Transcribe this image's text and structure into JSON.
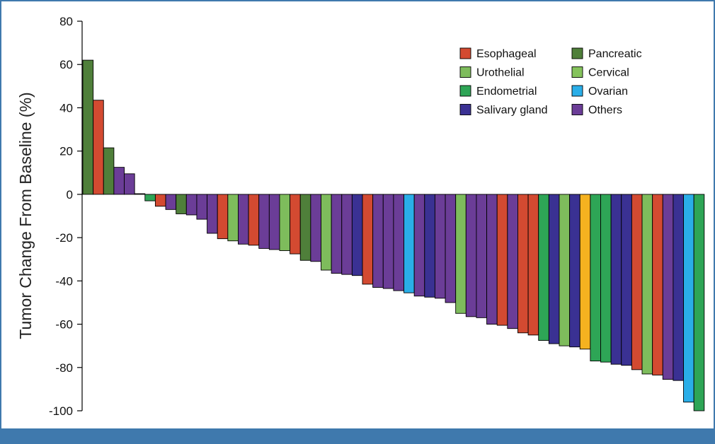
{
  "chart_data": {
    "type": "bar",
    "ylabel": "Tumor Change From Baseline (%)",
    "ylim": [
      -100,
      80
    ],
    "yticks": [
      80,
      60,
      40,
      20,
      0,
      -20,
      -40,
      -60,
      -80,
      -100
    ],
    "legend": {
      "placement": "top-right",
      "entries": [
        {
          "name": "Esophageal",
          "color": "#d34a31"
        },
        {
          "name": "Pancreatic",
          "color": "#4f7f3a"
        },
        {
          "name": "Urothelial",
          "color": "#7ebc5c"
        },
        {
          "name": "Cervical",
          "color": "#85c35c"
        },
        {
          "name": "Endometrial",
          "color": "#2ea556"
        },
        {
          "name": "Ovarian",
          "color": "#2aaee8"
        },
        {
          "name": "Salivary gland",
          "color": "#3a3193"
        },
        {
          "name": "Others",
          "color": "#6b3d97"
        }
      ]
    },
    "colors": {
      "Pancreatic": "#4f7f3a",
      "Esophageal": "#d34a31",
      "Others": "#6b3d97",
      "Endometrial": "#2ea556",
      "Urothelial": "#7ebc5c",
      "Cervical": "#85c35c",
      "Salivary gland": "#3a3193",
      "Ovarian": "#2aaee8",
      "Unlabeled": "#f5b220"
    },
    "bars": [
      {
        "cat": "Pancreatic",
        "value": 62
      },
      {
        "cat": "Esophageal",
        "value": 43.5
      },
      {
        "cat": "Pancreatic",
        "value": 21.5
      },
      {
        "cat": "Others",
        "value": 12.5
      },
      {
        "cat": "Others",
        "value": 9.5
      },
      {
        "cat": "Others",
        "value": 0.3
      },
      {
        "cat": "Endometrial",
        "value": -3
      },
      {
        "cat": "Esophageal",
        "value": -5.5
      },
      {
        "cat": "Others",
        "value": -7
      },
      {
        "cat": "Pancreatic",
        "value": -9
      },
      {
        "cat": "Others",
        "value": -9.5
      },
      {
        "cat": "Others",
        "value": -11.5
      },
      {
        "cat": "Others",
        "value": -18
      },
      {
        "cat": "Esophageal",
        "value": -20.5
      },
      {
        "cat": "Urothelial",
        "value": -21.5
      },
      {
        "cat": "Others",
        "value": -23
      },
      {
        "cat": "Esophageal",
        "value": -23.5
      },
      {
        "cat": "Others",
        "value": -25
      },
      {
        "cat": "Others",
        "value": -25.5
      },
      {
        "cat": "Urothelial",
        "value": -26
      },
      {
        "cat": "Esophageal",
        "value": -27.5
      },
      {
        "cat": "Pancreatic",
        "value": -30.5
      },
      {
        "cat": "Others",
        "value": -31
      },
      {
        "cat": "Urothelial",
        "value": -35
      },
      {
        "cat": "Others",
        "value": -36.5
      },
      {
        "cat": "Others",
        "value": -37
      },
      {
        "cat": "Salivary gland",
        "value": -37.5
      },
      {
        "cat": "Esophageal",
        "value": -41.5
      },
      {
        "cat": "Others",
        "value": -43
      },
      {
        "cat": "Others",
        "value": -43.5
      },
      {
        "cat": "Others",
        "value": -44.5
      },
      {
        "cat": "Ovarian",
        "value": -45.5
      },
      {
        "cat": "Others",
        "value": -47
      },
      {
        "cat": "Salivary gland",
        "value": -47.5
      },
      {
        "cat": "Others",
        "value": -48
      },
      {
        "cat": "Others",
        "value": -50
      },
      {
        "cat": "Urothelial",
        "value": -55
      },
      {
        "cat": "Others",
        "value": -56.5
      },
      {
        "cat": "Others",
        "value": -57
      },
      {
        "cat": "Others",
        "value": -60
      },
      {
        "cat": "Esophageal",
        "value": -60.5
      },
      {
        "cat": "Others",
        "value": -62
      },
      {
        "cat": "Esophageal",
        "value": -64
      },
      {
        "cat": "Esophageal",
        "value": -65
      },
      {
        "cat": "Endometrial",
        "value": -67.5
      },
      {
        "cat": "Salivary gland",
        "value": -69
      },
      {
        "cat": "Urothelial",
        "value": -70
      },
      {
        "cat": "Salivary gland",
        "value": -70.5
      },
      {
        "cat": "Unlabeled",
        "value": -71.5
      },
      {
        "cat": "Endometrial",
        "value": -77
      },
      {
        "cat": "Endometrial",
        "value": -77.5
      },
      {
        "cat": "Salivary gland",
        "value": -78.5
      },
      {
        "cat": "Salivary gland",
        "value": -79
      },
      {
        "cat": "Esophageal",
        "value": -81
      },
      {
        "cat": "Urothelial",
        "value": -83
      },
      {
        "cat": "Esophageal",
        "value": -83.5
      },
      {
        "cat": "Others",
        "value": -85.5
      },
      {
        "cat": "Salivary gland",
        "value": -86
      },
      {
        "cat": "Ovarian",
        "value": -96
      },
      {
        "cat": "Endometrial",
        "value": -100
      }
    ]
  }
}
